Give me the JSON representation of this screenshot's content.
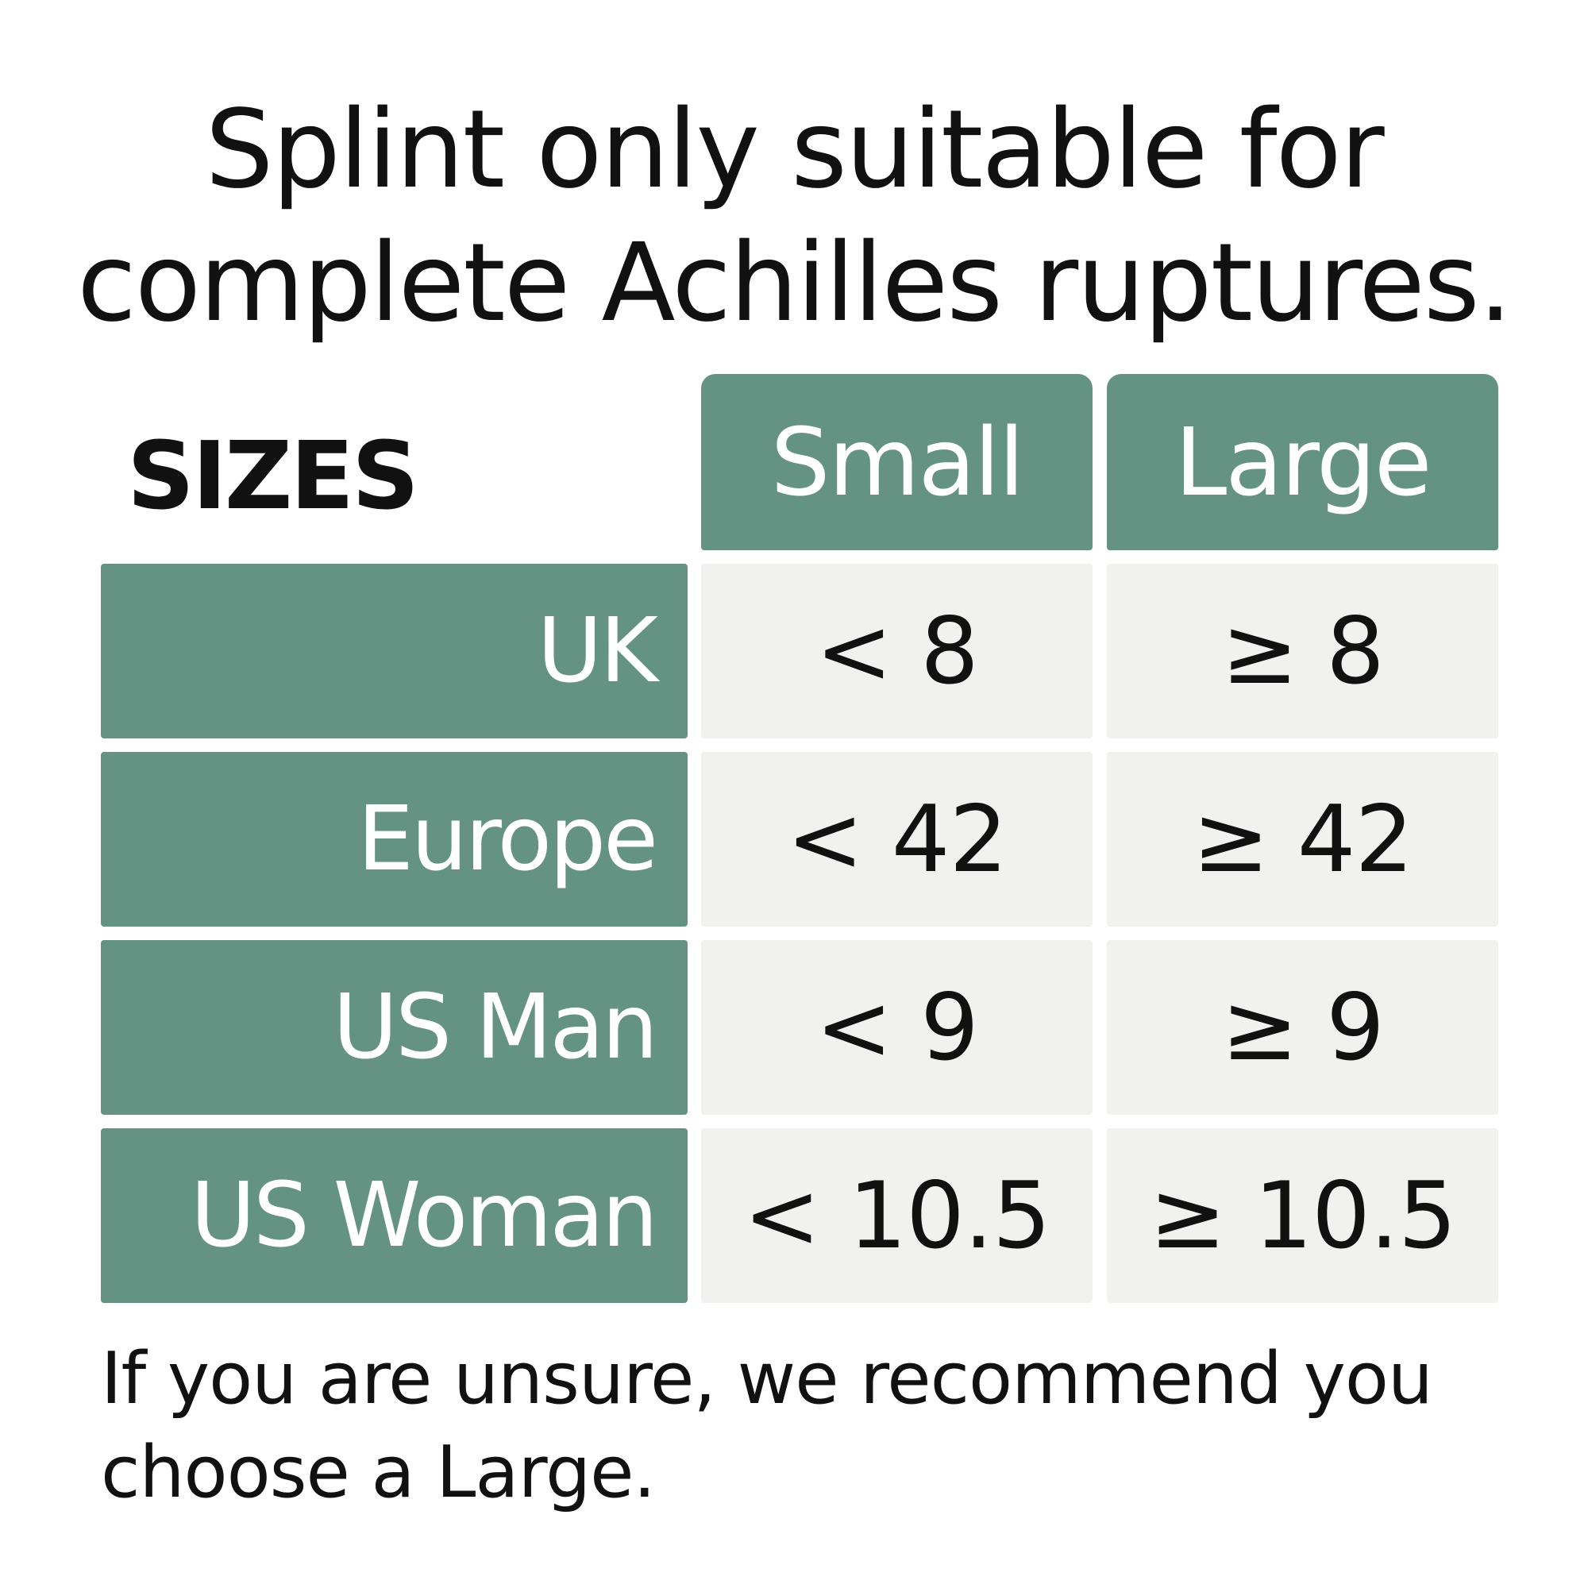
{
  "title": {
    "line1": "Splint only suitable for",
    "line2": "complete Achilles ruptures."
  },
  "table": {
    "header_label": "SIZES",
    "columns": [
      "Small",
      "Large"
    ],
    "rows": [
      {
        "label": "UK",
        "small": "< 8",
        "large": "≥ 8"
      },
      {
        "label": "Europe",
        "small": "< 42",
        "large": "≥ 42"
      },
      {
        "label": "US Man",
        "small": "< 9",
        "large": "≥ 9"
      },
      {
        "label": "US Woman",
        "small": "< 10.5",
        "large": "≥ 10.5"
      }
    ]
  },
  "footnote": "If you are unsure, we recommend you choose a Large.",
  "colors": {
    "accent": "#659383",
    "cell_background": "#f1f1ef",
    "text": "#111111"
  }
}
